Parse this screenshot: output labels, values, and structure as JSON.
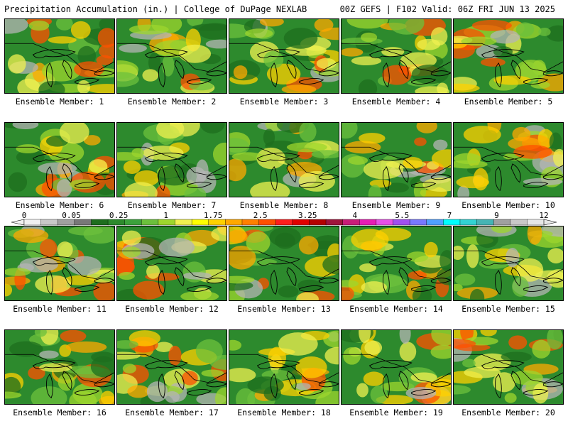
{
  "header": {
    "title": "Precipitation Accumulation (in.) | College of DuPage NEXLAB",
    "run_info": "00Z GEFS | F102 Valid: 06Z FRI JUN 13 2025"
  },
  "members": [
    {
      "label": "Ensemble Member: 1"
    },
    {
      "label": "Ensemble Member: 2"
    },
    {
      "label": "Ensemble Member: 3"
    },
    {
      "label": "Ensemble Member: 4"
    },
    {
      "label": "Ensemble Member: 5"
    },
    {
      "label": "Ensemble Member: 6"
    },
    {
      "label": "Ensemble Member: 7"
    },
    {
      "label": "Ensemble Member: 8"
    },
    {
      "label": "Ensemble Member: 9"
    },
    {
      "label": "Ensemble Member: 10"
    },
    {
      "label": "Ensemble Member: 11"
    },
    {
      "label": "Ensemble Member: 12"
    },
    {
      "label": "Ensemble Member: 13"
    },
    {
      "label": "Ensemble Member: 14"
    },
    {
      "label": "Ensemble Member: 15"
    },
    {
      "label": "Ensemble Member: 16"
    },
    {
      "label": "Ensemble Member: 17"
    },
    {
      "label": "Ensemble Member: 18"
    },
    {
      "label": "Ensemble Member: 19"
    },
    {
      "label": "Ensemble Member: 20"
    }
  ],
  "colorbar": {
    "tick_labels": [
      "0",
      "0.05",
      "0.25",
      "1",
      "1.75",
      "2.5",
      "3.25",
      "4",
      "5.5",
      "7",
      "9",
      "12"
    ],
    "colors": [
      "#f0f0f0",
      "#c8c8c8",
      "#a0a0a0",
      "#787878",
      "#1e6e1e",
      "#2d8a2d",
      "#3ca23c",
      "#6cc03c",
      "#9ed62e",
      "#f0f050",
      "#ffff00",
      "#ffd000",
      "#ffa800",
      "#ff8000",
      "#ff5000",
      "#ff1e1e",
      "#e00000",
      "#b40000",
      "#a0143c",
      "#c81e78",
      "#e61eb4",
      "#e650e6",
      "#a050f0",
      "#7878ff",
      "#50a0ff",
      "#00ffff",
      "#32d2d2",
      "#46b4b4",
      "#a0a0a0",
      "#c8c8c8",
      "#e6e6e6"
    ]
  }
}
